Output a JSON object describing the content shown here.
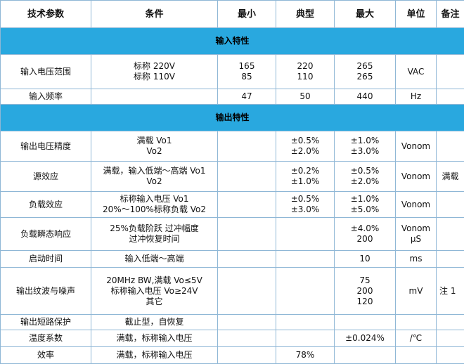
{
  "header": {
    "param": "技术参数",
    "cond": "条件",
    "min": "最小",
    "typ": "典型",
    "max": "最大",
    "unit": "单位",
    "note": "备注"
  },
  "sections": {
    "input": "输入特性",
    "output": "输出特性"
  },
  "rows": [
    {
      "param": "输入电压范围",
      "cond": "标称 220V\n标称 110V",
      "min": "165\n85",
      "typ": "220\n110",
      "max": "265\n265",
      "unit": "VAC",
      "note": ""
    },
    {
      "param": "输入频率",
      "cond": "",
      "min": "47",
      "typ": "50",
      "max": "440",
      "unit": "Hz",
      "note": ""
    },
    {
      "param": "输出电压精度",
      "cond": "满载    Vo1\nVo2",
      "min": "",
      "typ": "±0.5%\n±2.0%",
      "max": "±1.0%\n±3.0%",
      "unit": "Vonom",
      "note": ""
    },
    {
      "param": "源效应",
      "cond": "满载，输入低端～高端    Vo1\nVo2",
      "min": "",
      "typ": "±0.2%\n±1.0%",
      "max": "±0.5%\n±2.0%",
      "unit": "Vonom",
      "note": "满载"
    },
    {
      "param": "负载效应",
      "cond": "标称输入电压              Vo1\n20%～100%标称负载  Vo2",
      "min": "",
      "typ": "±0.5%\n±3.0%",
      "max": "±1.0%\n±5.0%",
      "unit": "Vonom",
      "note": ""
    },
    {
      "param": "负载瞬态响应",
      "cond": "25%负载阶跃   过冲幅度\n过冲恢复时间",
      "min": "",
      "typ": "",
      "max": "±4.0%\n200",
      "unit": "Vonom\nμS",
      "note": ""
    },
    {
      "param": "启动时间",
      "cond": "输入低端～高端",
      "min": "",
      "typ": "",
      "max": "10",
      "unit": "ms",
      "note": ""
    },
    {
      "param": "输出纹波与噪声",
      "cond": "20MHz BW,满载   Vo≤5V\n标称输入电压    Vo≥24V\n其它",
      "min": "",
      "typ": "",
      "max": "75\n200\n120",
      "unit": "mV",
      "note": "注 1"
    },
    {
      "param": "输出短路保护",
      "cond": "截止型，自恢复",
      "min": "",
      "typ": "",
      "max": "",
      "unit": "",
      "note": ""
    },
    {
      "param": "温度系数",
      "cond": "满载，标称输入电压",
      "min": "",
      "typ": "",
      "max": "±0.024%",
      "unit": "/℃",
      "note": ""
    },
    {
      "param": "效率",
      "cond": "满载，标称输入电压",
      "min": "",
      "typ": "78%",
      "max": "",
      "unit": "",
      "note": ""
    }
  ]
}
